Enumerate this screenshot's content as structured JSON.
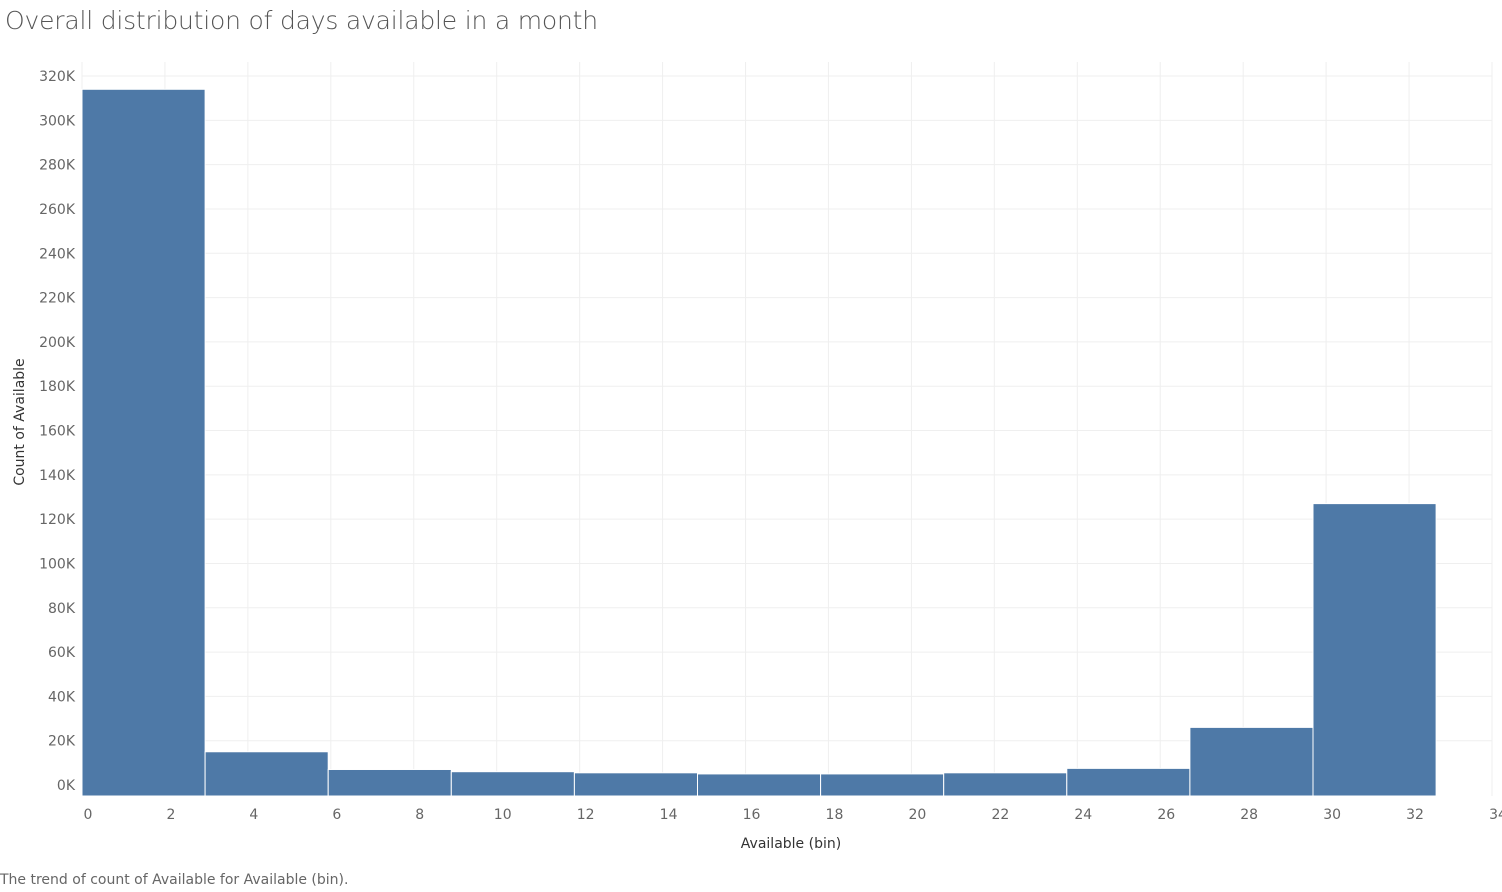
{
  "title": "Overall distribution of days available in a month",
  "caption": "The trend of count of Available for Available (bin).",
  "colors": {
    "bar": "#4e79a7",
    "grid": "#efefef",
    "bar_edge": "#ffffff"
  },
  "chart_data": {
    "type": "bar",
    "xlabel": "Available (bin)",
    "ylabel": "Count of Available",
    "xlim": [
      0,
      34
    ],
    "ylim": [
      -5000,
      320000
    ],
    "bin_width": 3,
    "bins": [
      {
        "start": 0,
        "value": 314000
      },
      {
        "start": 3,
        "value": 15000
      },
      {
        "start": 6,
        "value": 7000
      },
      {
        "start": 9,
        "value": 6000
      },
      {
        "start": 12,
        "value": 5500
      },
      {
        "start": 15,
        "value": 5000
      },
      {
        "start": 18,
        "value": 5000
      },
      {
        "start": 21,
        "value": 5500
      },
      {
        "start": 24,
        "value": 7500
      },
      {
        "start": 27,
        "value": 26000
      },
      {
        "start": 30,
        "value": 127000
      }
    ],
    "x_ticks": [
      "0",
      "2",
      "4",
      "6",
      "8",
      "10",
      "12",
      "14",
      "16",
      "18",
      "20",
      "22",
      "24",
      "26",
      "28",
      "30",
      "32",
      "34"
    ],
    "y_ticks": [
      {
        "value": 0,
        "label": "0K"
      },
      {
        "value": 20000,
        "label": "20K"
      },
      {
        "value": 40000,
        "label": "40K"
      },
      {
        "value": 60000,
        "label": "60K"
      },
      {
        "value": 80000,
        "label": "80K"
      },
      {
        "value": 100000,
        "label": "100K"
      },
      {
        "value": 120000,
        "label": "120K"
      },
      {
        "value": 140000,
        "label": "140K"
      },
      {
        "value": 160000,
        "label": "160K"
      },
      {
        "value": 180000,
        "label": "180K"
      },
      {
        "value": 200000,
        "label": "200K"
      },
      {
        "value": 220000,
        "label": "220K"
      },
      {
        "value": 240000,
        "label": "240K"
      },
      {
        "value": 260000,
        "label": "260K"
      },
      {
        "value": 280000,
        "label": "280K"
      },
      {
        "value": 300000,
        "label": "300K"
      },
      {
        "value": 320000,
        "label": "320K"
      }
    ],
    "grid": true
  }
}
